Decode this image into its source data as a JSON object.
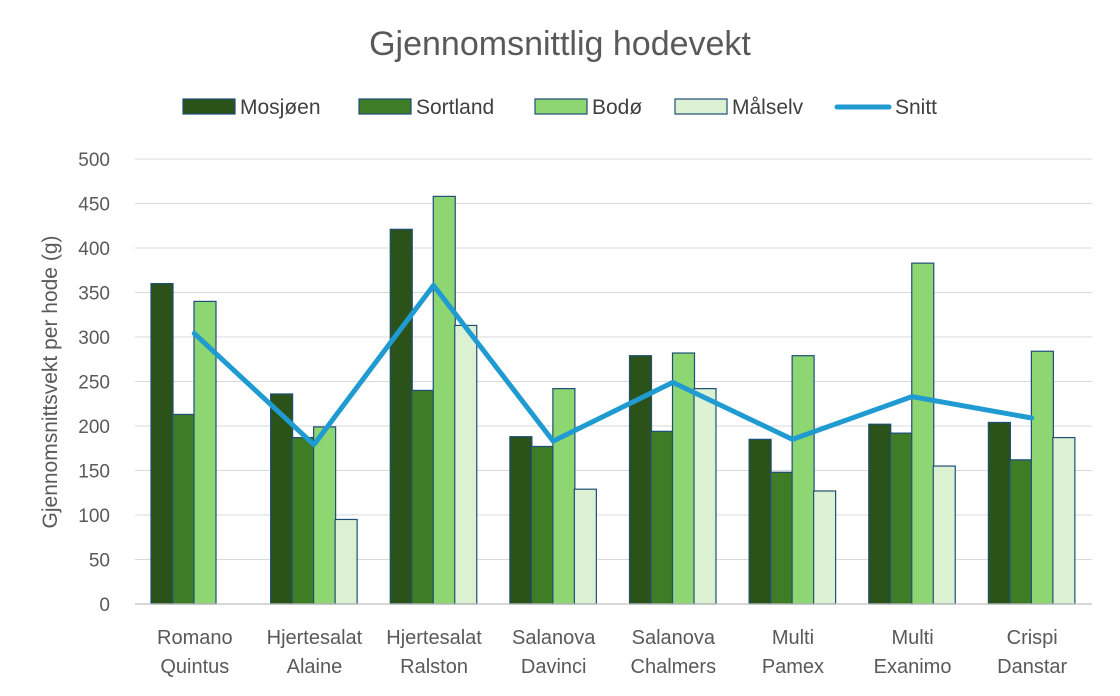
{
  "chart_data": {
    "type": "bar",
    "title": "Gjennomsnittlig hodevekt",
    "ylabel": "Gjennomsnittsvekt per hode (g)",
    "xlabel": "",
    "ylim": [
      0,
      500
    ],
    "yticks": [
      0,
      50,
      100,
      150,
      200,
      250,
      300,
      350,
      400,
      450,
      500
    ],
    "grid": true,
    "legend_position": "top",
    "categories": [
      [
        "Romano",
        "Quintus"
      ],
      [
        "Hjertesalat",
        "Alaine"
      ],
      [
        "Hjertesalat",
        "Ralston"
      ],
      [
        "Salanova",
        "Davinci"
      ],
      [
        "Salanova",
        "Chalmers"
      ],
      [
        "Multi",
        "Pamex"
      ],
      [
        "Multi",
        "Exanimo"
      ],
      [
        "Crispi",
        "Danstar"
      ]
    ],
    "series": [
      {
        "name": "Mosjøen",
        "type": "bar",
        "color": "#2b5219",
        "values": [
          360,
          236,
          421,
          188,
          279,
          185,
          202,
          204
        ]
      },
      {
        "name": "Sortland",
        "type": "bar",
        "color": "#3e7c25",
        "values": [
          213,
          187,
          240,
          177,
          194,
          148,
          192,
          162
        ]
      },
      {
        "name": "Bodø",
        "type": "bar",
        "color": "#8ed672",
        "values": [
          340,
          199,
          458,
          242,
          282,
          279,
          383,
          284
        ]
      },
      {
        "name": "Målselv",
        "type": "bar",
        "color": "#dcf0d2",
        "values": [
          null,
          95,
          313,
          129,
          242,
          127,
          155,
          187
        ]
      },
      {
        "name": "Snitt",
        "type": "line",
        "color": "#1f9bd1",
        "values": [
          304,
          179,
          358,
          183,
          249,
          185,
          233,
          209
        ]
      }
    ],
    "bar_border_color": "#1f4e79"
  }
}
